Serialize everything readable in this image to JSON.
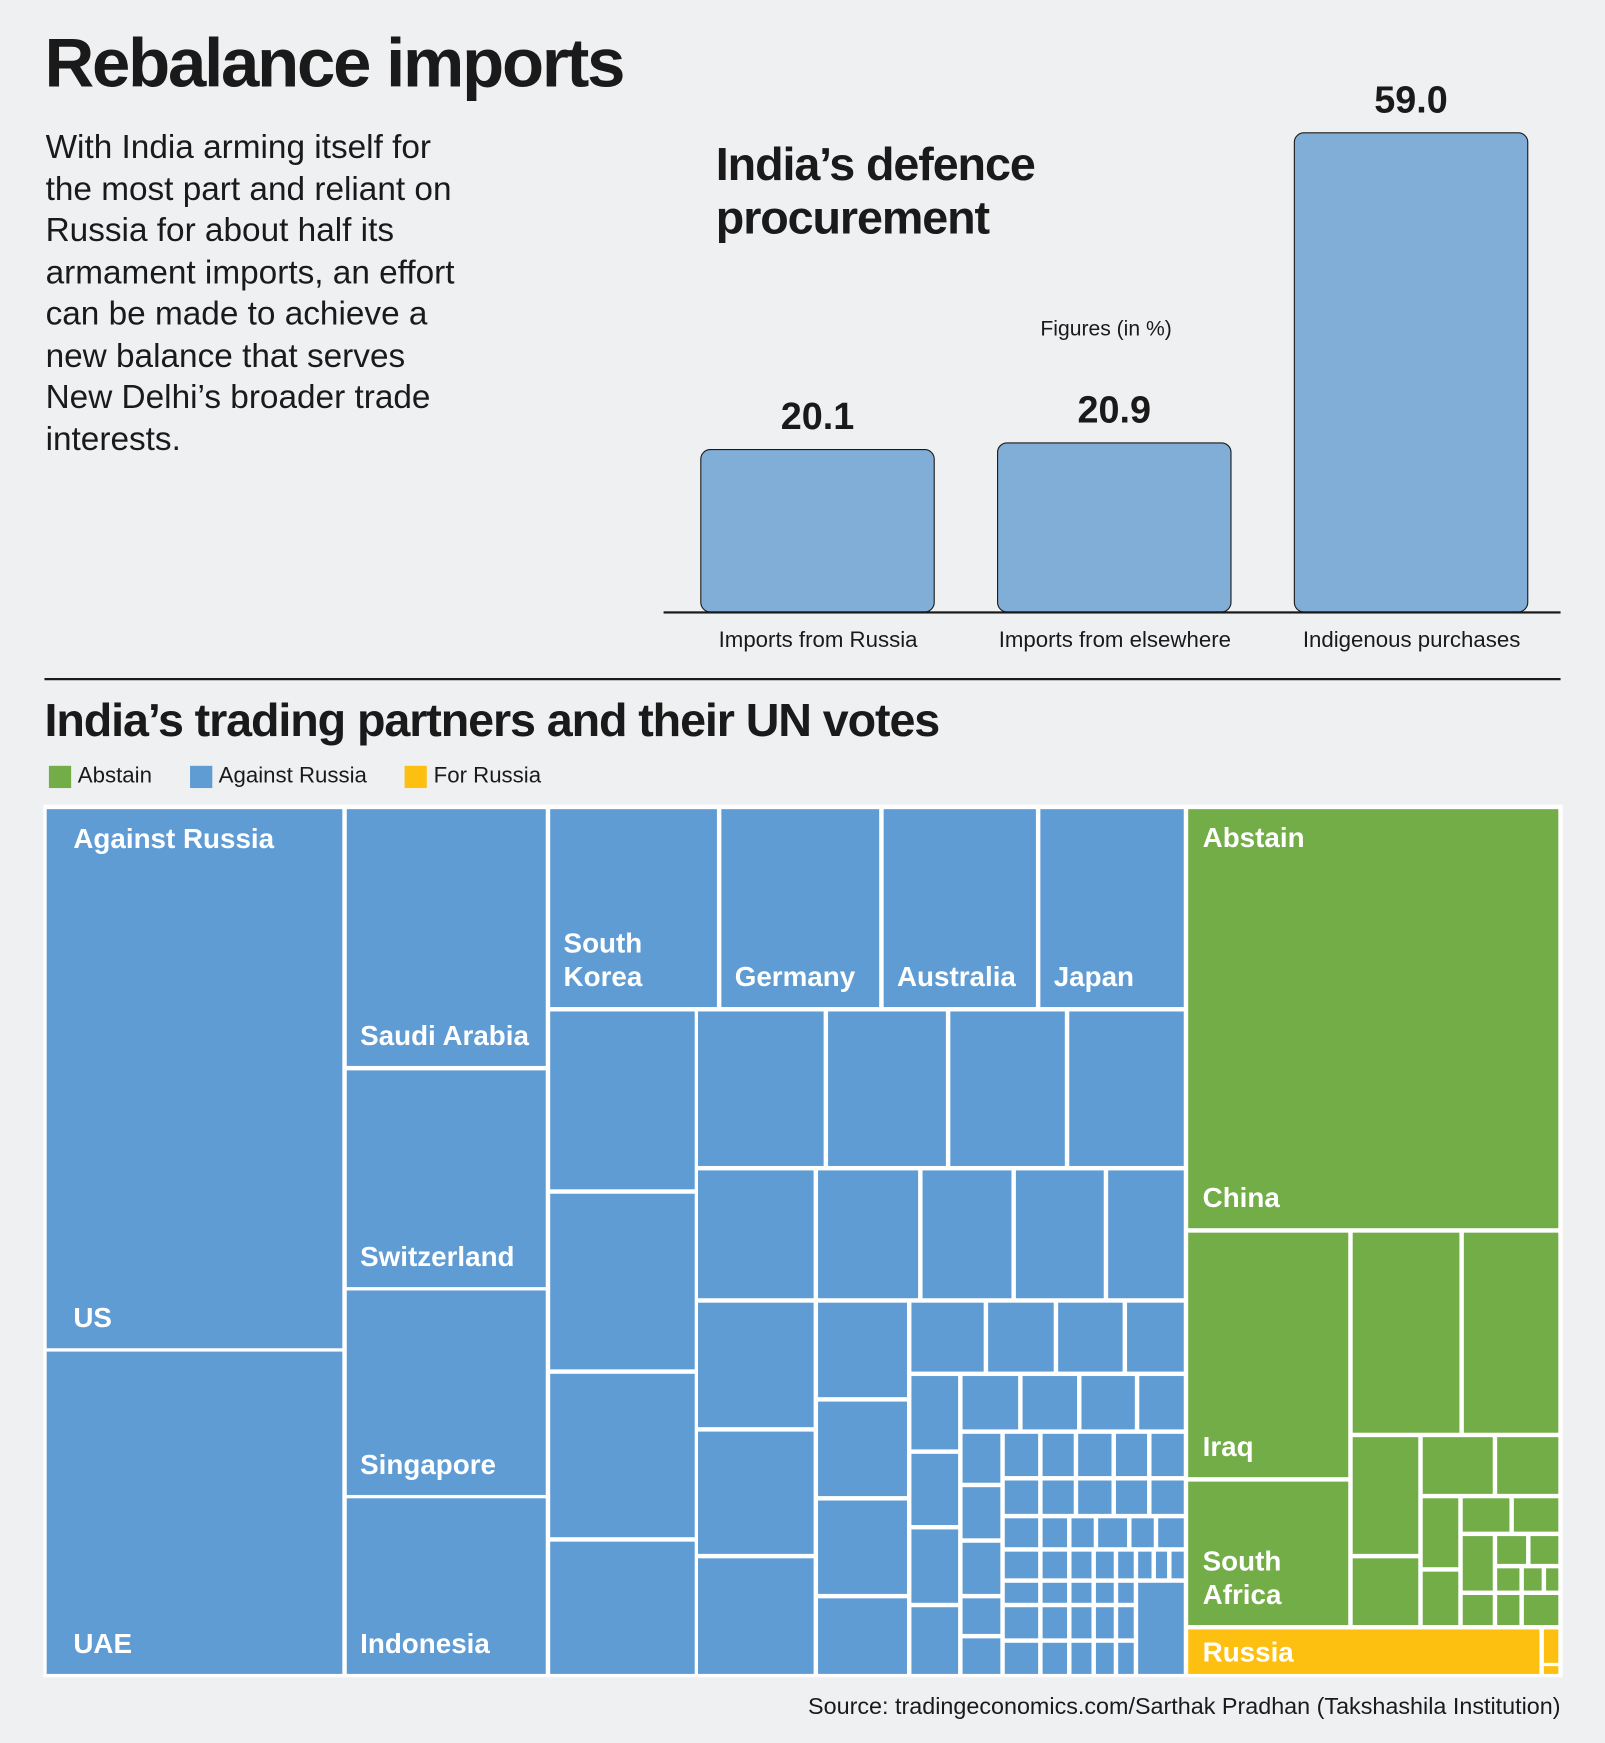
{
  "title": "Rebalance imports",
  "intro": "With India arming itself for the most part and reliant on Russia for about half its armament imports, an effort can be made to achieve a new balance that serves New Delhi’s broader trade interests.",
  "chart_data": [
    {
      "type": "bar",
      "title": "India’s defence procurement",
      "subtitle": "Figures (in %)",
      "categories": [
        "Imports from Russia",
        "Imports from elsewhere",
        "Indigenous purchases"
      ],
      "values": [
        20.1,
        20.9,
        59.0
      ],
      "value_labels": [
        "20.1",
        "20.9",
        "59.0"
      ],
      "unit": "%"
    },
    {
      "type": "treemap",
      "title": "India’s trading partners and their UN votes",
      "legend": [
        {
          "label": "Abstain",
          "color": "#72ad47"
        },
        {
          "label": "Against Russia",
          "color": "#5f9cd4"
        },
        {
          "label": "For Russia",
          "color": "#fdc010"
        }
      ],
      "group_labels": {
        "against": "Against Russia",
        "abstain": "Abstain"
      },
      "labeled_cells": [
        "US",
        "UAE",
        "Saudi Arabia",
        "Switzerland",
        "Singapore",
        "Indonesia",
        "South Korea",
        "Germany",
        "Australia",
        "Japan",
        "China",
        "Iraq",
        "South Africa",
        "Russia"
      ]
    }
  ],
  "source": "Source: tradingeconomics.com/Sarthak Pradhan (Takshashila Institution)"
}
